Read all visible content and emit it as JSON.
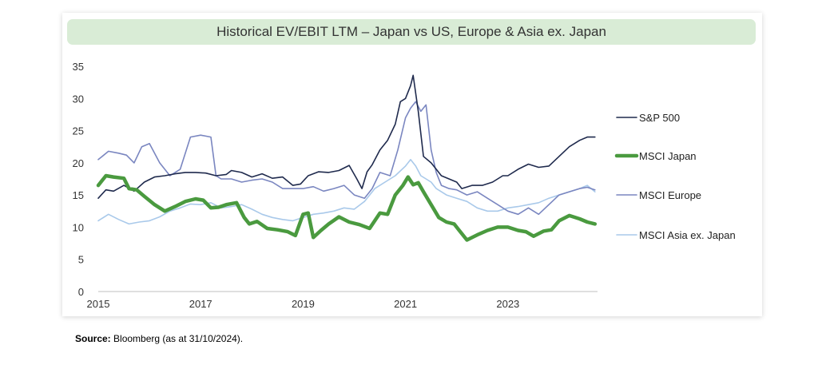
{
  "chart_data": {
    "type": "line",
    "title": "Historical EV/EBIT LTM – Japan vs US, Europe & Asia ex. Japan",
    "xlabel": "",
    "ylabel": "",
    "xlim": [
      2015,
      2024.75
    ],
    "ylim": [
      0,
      35
    ],
    "x_ticks": [
      "2015",
      "2017",
      "2019",
      "2021",
      "2023"
    ],
    "y_ticks": [
      "0",
      "5",
      "10",
      "15",
      "20",
      "25",
      "30",
      "35"
    ],
    "grid": false,
    "legend_position": "right",
    "series": [
      {
        "name": "S&P 500",
        "color": "#1f2a4d",
        "x": [
          2015.0,
          2015.15,
          2015.3,
          2015.5,
          2015.7,
          2015.9,
          2016.1,
          2016.3,
          2016.5,
          2016.7,
          2016.9,
          2017.1,
          2017.3,
          2017.5,
          2017.6,
          2017.8,
          2018.0,
          2018.2,
          2018.4,
          2018.6,
          2018.8,
          2018.95,
          2019.1,
          2019.3,
          2019.5,
          2019.7,
          2019.9,
          2020.05,
          2020.15,
          2020.25,
          2020.35,
          2020.5,
          2020.65,
          2020.8,
          2020.9,
          2021.0,
          2021.1,
          2021.15,
          2021.25,
          2021.35,
          2021.5,
          2021.6,
          2021.7,
          2021.85,
          2022.0,
          2022.1,
          2022.3,
          2022.5,
          2022.7,
          2022.9,
          2023.0,
          2023.2,
          2023.4,
          2023.6,
          2023.8,
          2024.0,
          2024.2,
          2024.4,
          2024.55,
          2024.7
        ],
        "y": [
          14.5,
          15.8,
          15.6,
          16.5,
          15.6,
          17.0,
          17.8,
          18.0,
          18.3,
          18.5,
          18.5,
          18.4,
          18.0,
          18.2,
          18.8,
          18.5,
          17.8,
          18.3,
          17.6,
          17.8,
          16.5,
          16.7,
          18.0,
          18.6,
          18.5,
          18.8,
          19.6,
          17.5,
          16.0,
          18.6,
          19.7,
          22.0,
          23.5,
          26.0,
          29.5,
          30.0,
          32.0,
          33.6,
          28.0,
          21.0,
          20.0,
          19.0,
          18.0,
          17.5,
          17.0,
          16.0,
          16.5,
          16.5,
          17.0,
          18.0,
          18.0,
          19.0,
          19.8,
          19.3,
          19.5,
          21.0,
          22.5,
          23.5,
          24.0,
          24.0
        ]
      },
      {
        "name": "MSCI Japan",
        "color": "#4a9a3f",
        "x": [
          2015.0,
          2015.15,
          2015.3,
          2015.5,
          2015.6,
          2015.75,
          2015.9,
          2016.1,
          2016.3,
          2016.5,
          2016.7,
          2016.9,
          2017.05,
          2017.2,
          2017.35,
          2017.5,
          2017.7,
          2017.85,
          2017.95,
          2018.1,
          2018.3,
          2018.5,
          2018.7,
          2018.85,
          2019.0,
          2019.1,
          2019.2,
          2019.35,
          2019.5,
          2019.7,
          2019.9,
          2020.1,
          2020.3,
          2020.5,
          2020.65,
          2020.8,
          2020.95,
          2021.05,
          2021.15,
          2021.25,
          2021.35,
          2021.5,
          2021.65,
          2021.8,
          2021.95,
          2022.05,
          2022.2,
          2022.4,
          2022.6,
          2022.8,
          2023.0,
          2023.2,
          2023.35,
          2023.5,
          2023.7,
          2023.85,
          2024.0,
          2024.2,
          2024.4,
          2024.55,
          2024.7
        ],
        "y": [
          16.5,
          18.0,
          17.8,
          17.6,
          16.0,
          15.8,
          14.8,
          13.5,
          12.5,
          13.2,
          14.0,
          14.4,
          14.2,
          13.0,
          13.1,
          13.5,
          13.8,
          11.5,
          10.5,
          10.9,
          9.8,
          9.6,
          9.3,
          8.7,
          12.0,
          12.2,
          8.4,
          9.5,
          10.5,
          11.6,
          10.8,
          10.4,
          9.8,
          12.2,
          12.0,
          15.0,
          16.5,
          17.8,
          16.6,
          16.9,
          15.5,
          13.5,
          11.5,
          10.8,
          10.5,
          9.5,
          8.0,
          8.8,
          9.5,
          10.0,
          10.0,
          9.5,
          9.3,
          8.6,
          9.4,
          9.6,
          11.0,
          11.8,
          11.3,
          10.8,
          10.5
        ]
      },
      {
        "name": "MSCI Europe",
        "color": "#7a86c0",
        "x": [
          2015.0,
          2015.2,
          2015.4,
          2015.55,
          2015.7,
          2015.85,
          2016.0,
          2016.2,
          2016.4,
          2016.6,
          2016.8,
          2017.0,
          2017.2,
          2017.3,
          2017.4,
          2017.6,
          2017.8,
          2018.0,
          2018.2,
          2018.4,
          2018.6,
          2018.8,
          2019.0,
          2019.2,
          2019.4,
          2019.6,
          2019.8,
          2020.0,
          2020.2,
          2020.35,
          2020.5,
          2020.7,
          2020.85,
          2021.0,
          2021.1,
          2021.2,
          2021.3,
          2021.4,
          2021.5,
          2021.6,
          2021.7,
          2021.85,
          2022.0,
          2022.2,
          2022.4,
          2022.6,
          2022.8,
          2023.0,
          2023.2,
          2023.4,
          2023.6,
          2023.8,
          2024.0,
          2024.2,
          2024.4,
          2024.55,
          2024.7
        ],
        "y": [
          20.5,
          21.8,
          21.5,
          21.2,
          20.0,
          22.5,
          23.0,
          20.0,
          18.0,
          19.0,
          24.0,
          24.3,
          24.0,
          18.0,
          17.5,
          17.5,
          17.0,
          17.3,
          17.5,
          17.0,
          16.0,
          16.0,
          16.0,
          16.3,
          15.6,
          16.0,
          16.5,
          15.0,
          14.5,
          16.0,
          18.5,
          18.0,
          22.0,
          27.0,
          28.5,
          29.5,
          28.0,
          29.0,
          22.0,
          18.5,
          16.5,
          16.0,
          15.8,
          15.0,
          15.5,
          14.5,
          13.5,
          12.5,
          12.0,
          13.0,
          12.0,
          13.5,
          15.0,
          15.5,
          16.0,
          16.2,
          15.8
        ]
      },
      {
        "name": "MSCI Asia ex. Japan",
        "color": "#a9c9ea",
        "x": [
          2015.0,
          2015.2,
          2015.4,
          2015.6,
          2015.8,
          2016.0,
          2016.2,
          2016.4,
          2016.6,
          2016.8,
          2017.0,
          2017.2,
          2017.4,
          2017.6,
          2017.8,
          2018.0,
          2018.2,
          2018.4,
          2018.6,
          2018.8,
          2019.0,
          2019.2,
          2019.4,
          2019.6,
          2019.8,
          2020.0,
          2020.2,
          2020.4,
          2020.6,
          2020.8,
          2021.0,
          2021.1,
          2021.2,
          2021.3,
          2021.4,
          2021.5,
          2021.6,
          2021.8,
          2022.0,
          2022.2,
          2022.4,
          2022.6,
          2022.8,
          2023.0,
          2023.2,
          2023.4,
          2023.6,
          2023.8,
          2024.0,
          2024.2,
          2024.4,
          2024.55,
          2024.7
        ],
        "y": [
          11.0,
          12.0,
          11.2,
          10.5,
          10.8,
          11.0,
          11.6,
          12.5,
          13.0,
          13.6,
          13.5,
          13.8,
          13.0,
          13.2,
          13.5,
          12.8,
          12.0,
          11.5,
          11.2,
          11.0,
          11.5,
          12.0,
          12.2,
          12.5,
          13.0,
          12.8,
          14.0,
          16.0,
          17.0,
          18.0,
          19.5,
          20.5,
          19.5,
          18.0,
          17.5,
          17.0,
          16.0,
          15.0,
          14.5,
          14.0,
          13.0,
          12.5,
          12.5,
          13.0,
          13.2,
          13.5,
          13.8,
          14.5,
          15.0,
          15.5,
          16.0,
          16.5,
          15.5
        ]
      }
    ]
  },
  "source": {
    "label": "Source:",
    "text": " Bloomberg (as at 31/10/2024)."
  }
}
